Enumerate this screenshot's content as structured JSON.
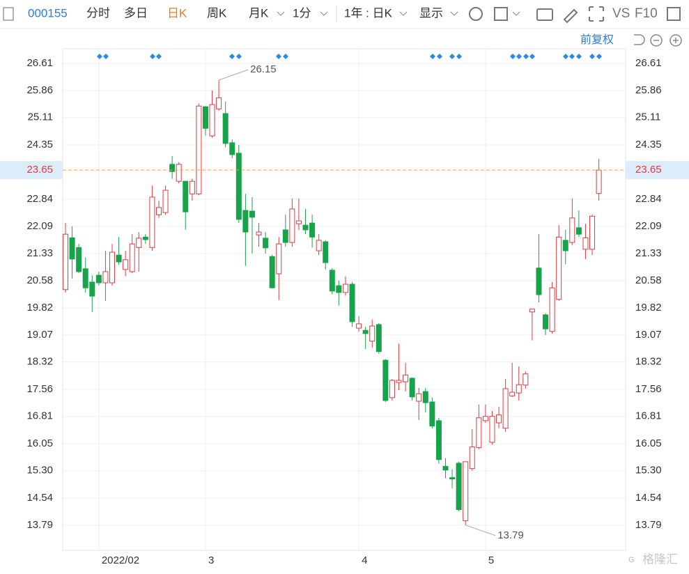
{
  "toolbar": {
    "code": "000155",
    "tabs": [
      "分时",
      "多日",
      "日K",
      "周K",
      "月K"
    ],
    "active_tab": 2,
    "interval": "1分",
    "range": "1年 : 日K",
    "display": "显示",
    "vs": "VS",
    "f10": "F10",
    "adjust": "前复权",
    "watermark": "格隆汇"
  },
  "chart_data": {
    "type": "candlestick",
    "categories": [
      null,
      null,
      null,
      null,
      null,
      "2022/02",
      null,
      null,
      null,
      null,
      null,
      null,
      null,
      null,
      null,
      null,
      null,
      null,
      null,
      null,
      null,
      "3",
      null,
      null,
      null,
      null,
      null,
      null,
      null,
      null,
      null,
      null,
      null,
      null,
      null,
      null,
      null,
      null,
      null,
      null,
      null,
      null,
      null,
      null,
      "4",
      null,
      null,
      null,
      null,
      null,
      null,
      null,
      null,
      null,
      null,
      null,
      null,
      null,
      null,
      null,
      null,
      null,
      null,
      "5",
      null,
      null,
      null,
      null,
      null,
      null,
      null,
      null,
      null,
      null,
      null,
      null,
      null,
      null,
      null,
      null,
      null
    ],
    "open": [
      20.33,
      21.77,
      21.5,
      20.91,
      20.54,
      20.73,
      20.52,
      20.52,
      21.29,
      20.89,
      20.83,
      21.5,
      21.79,
      21.5,
      22.41,
      22.47,
      23.81,
      23.34,
      23.34,
      22.99,
      22.99,
      25.41,
      24.6,
      25.35,
      25.22,
      24.41,
      24.12,
      22.53,
      22.51,
      21.85,
      21.76,
      21.25,
      20.77,
      21.99,
      21.64,
      22.16,
      22.12,
      22.18,
      21.41,
      21.66,
      20.87,
      20.44,
      20.25,
      20.48,
      19.26,
      19.2,
      18.9,
      19.36,
      18.37,
      17.33,
      17.75,
      17.77,
      17.87,
      17.23,
      17.5,
      17.21,
      16.69,
      15.42,
      15.11,
      15.51,
      13.91,
      15.36,
      15.94,
      16.69,
      16.09,
      16.63,
      16.48,
      17.38,
      17.46,
      17.68,
      19.71,
      20.93,
      19.63,
      19.17,
      20.06,
      21.7,
      21.64,
      22.05,
      21.45,
      21.45,
      23.0
    ],
    "high": [
      22.18,
      22.09,
      21.6,
      21.22,
      20.73,
      20.83,
      21.41,
      21.6,
      21.79,
      21.41,
      21.87,
      21.93,
      21.87,
      23.22,
      22.8,
      23.22,
      24.04,
      23.87,
      23.34,
      23.41,
      25.5,
      25.43,
      25.86,
      26.15,
      25.55,
      24.5,
      24.35,
      22.99,
      22.9,
      22.18,
      21.93,
      21.29,
      21.79,
      22.41,
      22.86,
      22.86,
      22.57,
      22.41,
      21.87,
      21.7,
      20.93,
      20.58,
      20.7,
      20.54,
      19.59,
      19.3,
      19.5,
      19.4,
      18.4,
      17.85,
      18.83,
      18.3,
      17.89,
      17.6,
      17.6,
      17.33,
      16.77,
      15.65,
      15.34,
      15.55,
      15.55,
      16.46,
      17.14,
      17.14,
      16.96,
      17.08,
      17.85,
      18.3,
      18.2,
      18.06,
      19.79,
      21.87,
      19.67,
      20.54,
      22.12,
      21.99,
      22.86,
      22.53,
      22.16,
      22.41,
      23.96
    ],
    "low": [
      20.25,
      20.64,
      20.79,
      20.25,
      19.71,
      20.44,
      20.02,
      20.44,
      21.02,
      20.7,
      20.79,
      20.83,
      21.6,
      21.41,
      22.32,
      22.41,
      23.41,
      23.28,
      22.0,
      22.8,
      22.95,
      24.61,
      24.55,
      25.3,
      24.29,
      23.98,
      22.18,
      20.99,
      21.33,
      21.52,
      21.33,
      20.38,
      20.04,
      21.52,
      21.52,
      21.99,
      21.87,
      21.5,
      21.29,
      20.89,
      20.2,
      19.89,
      20.16,
      19.3,
      19.16,
      18.68,
      18.72,
      18.55,
      17.21,
      17.25,
      17.54,
      17.5,
      17.25,
      16.71,
      16.92,
      16.48,
      15.5,
      15.09,
      14.81,
      14.17,
      13.79,
      15.3,
      15.9,
      16.63,
      16.03,
      16.48,
      16.38,
      17.35,
      17.25,
      17.58,
      18.92,
      19.98,
      19.07,
      19.11,
      20.02,
      21.04,
      21.56,
      21.79,
      21.18,
      21.29,
      22.8
    ],
    "close": [
      21.87,
      21.18,
      20.83,
      20.38,
      20.15,
      20.52,
      20.83,
      21.37,
      21.1,
      21.16,
      21.6,
      21.76,
      21.72,
      22.9,
      22.61,
      23.09,
      23.61,
      23.81,
      22.49,
      23.34,
      25.43,
      24.81,
      25.47,
      25.66,
      24.39,
      24.08,
      22.28,
      21.93,
      22.34,
      21.93,
      21.49,
      20.38,
      21.6,
      21.64,
      22.57,
      22.24,
      21.99,
      21.79,
      21.7,
      21.08,
      20.29,
      20.25,
      20.48,
      19.44,
      19.38,
      19.11,
      19.32,
      18.61,
      17.25,
      17.81,
      17.81,
      17.96,
      17.35,
      17.44,
      17.19,
      16.54,
      15.61,
      15.32,
      15.07,
      14.22,
      15.55,
      15.96,
      16.77,
      16.81,
      16.81,
      16.85,
      17.58,
      17.48,
      17.69,
      17.99,
      19.79,
      20.19,
      19.24,
      20.38,
      21.79,
      21.41,
      22.32,
      21.87,
      21.77,
      22.37,
      23.65
    ],
    "up_color": "#e0393e",
    "down_color": "#17a34a",
    "ylim": [
      13.09,
      27.02
    ],
    "yticks": [
      13.79,
      14.54,
      {
        "value": 15.3,
        "label": "15.30"
      },
      16.05,
      16.81,
      17.56,
      18.32,
      19.07,
      19.82,
      20.58,
      21.33,
      22.09,
      22.84,
      24.35,
      25.11,
      25.86,
      26.61
    ],
    "grid": true
  }
}
